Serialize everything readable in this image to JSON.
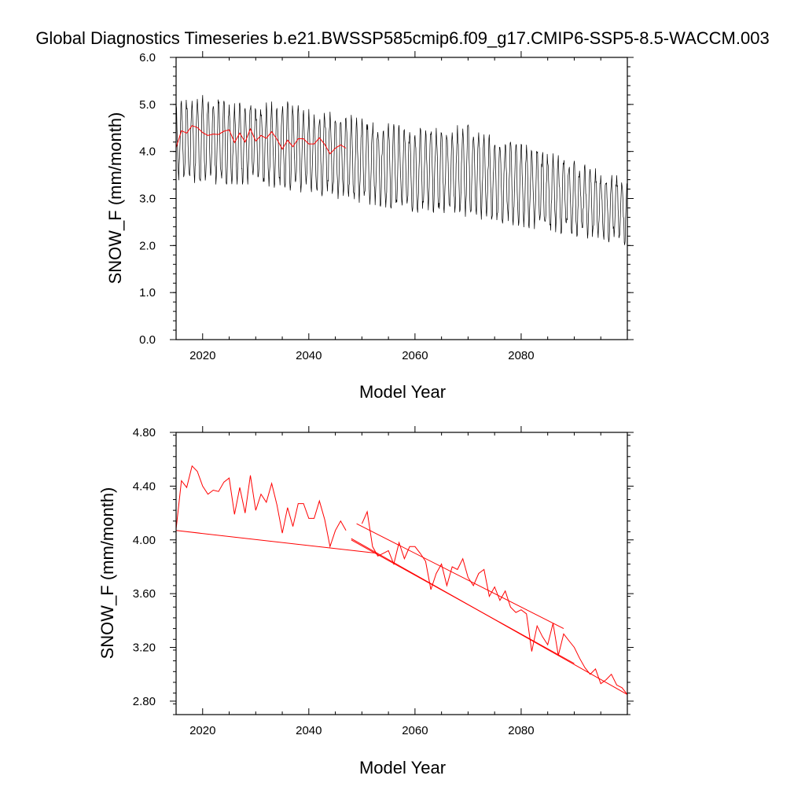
{
  "page": {
    "title": "Global Diagnostics Timeseries b.e21.BWSSP585cmip6.f09_g17.CMIP6-SSP5-8.5-WACCM.003"
  },
  "colors": {
    "monthly": "#000000",
    "annual": "#ff0000"
  },
  "chart_data": [
    {
      "type": "line",
      "title": "",
      "xlabel": "Model Year",
      "ylabel": "SNOW_F (mm/month)",
      "xlim": [
        2015,
        2100
      ],
      "ylim": [
        0.0,
        6.0
      ],
      "x_ticks": [
        2020,
        2040,
        2060,
        2080
      ],
      "x_tick_labels": [
        "2020",
        "2040",
        "2060",
        "2080"
      ],
      "y_ticks": [
        0.0,
        1.0,
        2.0,
        3.0,
        4.0,
        5.0,
        6.0
      ],
      "y_tick_labels": [
        "0.0",
        "1.0",
        "2.0",
        "3.0",
        "4.0",
        "5.0",
        "6.0"
      ],
      "series": [
        {
          "name": "monthly SNOW_F",
          "color": "#000000",
          "note": "monthly values oscillating roughly between min and max envelope",
          "x": [
            2015,
            2020,
            2025,
            2030,
            2035,
            2040,
            2045,
            2050,
            2055,
            2060,
            2065,
            2070,
            2075,
            2080,
            2085,
            2090,
            2095,
            2100
          ],
          "max": [
            5.0,
            5.1,
            5.0,
            4.9,
            5.0,
            4.8,
            4.8,
            4.6,
            4.5,
            4.4,
            4.4,
            4.5,
            4.2,
            4.1,
            3.9,
            3.7,
            3.5,
            3.4
          ],
          "min": [
            3.5,
            3.4,
            3.4,
            3.4,
            3.3,
            3.2,
            3.1,
            3.0,
            2.9,
            2.8,
            2.8,
            2.7,
            2.6,
            2.5,
            2.4,
            2.3,
            2.2,
            2.1
          ]
        },
        {
          "name": "annual mean SNOW_F",
          "color": "#ff0000",
          "x": [
            2015,
            2016,
            2017,
            2018,
            2019,
            2020,
            2021,
            2022,
            2023,
            2024,
            2025,
            2026,
            2027,
            2028,
            2029,
            2030,
            2031,
            2032,
            2033,
            2034,
            2035,
            2036,
            2037,
            2038,
            2039,
            2040,
            2041,
            2042,
            2043,
            2044,
            2045,
            2046,
            2047
          ],
          "values": [
            4.08,
            4.44,
            4.39,
            4.55,
            4.51,
            4.4,
            4.34,
            4.37,
            4.36,
            4.43,
            4.46,
            4.19,
            4.39,
            4.2,
            4.48,
            4.22,
            4.34,
            4.28,
            4.42,
            4.26,
            4.05,
            4.24,
            4.1,
            4.27,
            4.27,
            4.16,
            4.16,
            4.29,
            4.15,
            3.95,
            4.07,
            4.14,
            4.07
          ]
        }
      ]
    },
    {
      "type": "line",
      "title": "",
      "xlabel": "Model Year",
      "ylabel": "SNOW_F (mm/month)",
      "xlim": [
        2015,
        2100
      ],
      "ylim": [
        2.7,
        4.8
      ],
      "x_ticks": [
        2020,
        2040,
        2060,
        2080
      ],
      "x_tick_labels": [
        "2020",
        "2040",
        "2060",
        "2080"
      ],
      "y_ticks": [
        2.8,
        3.2,
        3.6,
        4.0,
        4.4,
        4.8
      ],
      "y_tick_labels": [
        "2.80",
        "3.20",
        "3.60",
        "4.00",
        "4.40",
        "4.80"
      ],
      "series": [
        {
          "name": "annual mean SNOW_F (first segment)",
          "color": "#ff0000",
          "x": [
            2015,
            2016,
            2017,
            2018,
            2019,
            2020,
            2021,
            2022,
            2023,
            2024,
            2025,
            2026,
            2027,
            2028,
            2029,
            2030,
            2031,
            2032,
            2033,
            2034,
            2035,
            2036,
            2037,
            2038,
            2039,
            2040,
            2041,
            2042,
            2043,
            2044,
            2045,
            2046,
            2047
          ],
          "values": [
            4.08,
            4.44,
            4.39,
            4.55,
            4.51,
            4.4,
            4.34,
            4.37,
            4.36,
            4.43,
            4.46,
            4.19,
            4.39,
            4.2,
            4.48,
            4.22,
            4.34,
            4.28,
            4.42,
            4.26,
            4.05,
            4.24,
            4.1,
            4.27,
            4.27,
            4.16,
            4.16,
            4.29,
            4.15,
            3.95,
            4.07,
            4.14,
            4.07
          ]
        },
        {
          "name": "connector",
          "color": "#ff0000",
          "x": [
            2015,
            2053
          ],
          "values": [
            4.07,
            3.9
          ]
        },
        {
          "name": "annual mean SNOW_F (later segments)",
          "color": "#ff0000",
          "x": [
            2050,
            2051,
            2052,
            2053,
            2054,
            2055,
            2056,
            2057,
            2058,
            2059,
            2060,
            2061,
            2062,
            2063,
            2064,
            2065,
            2066,
            2067,
            2068,
            2069,
            2070,
            2071,
            2072,
            2073,
            2074,
            2075,
            2076,
            2077,
            2078,
            2079,
            2080,
            2081,
            2082,
            2083,
            2084,
            2085,
            2086,
            2087,
            2088,
            2089,
            2090,
            2091,
            2092,
            2093,
            2094,
            2095,
            2096,
            2097,
            2098,
            2099,
            2100
          ],
          "values": [
            4.12,
            4.21,
            3.95,
            3.88,
            3.9,
            3.92,
            3.82,
            3.98,
            3.86,
            3.95,
            3.95,
            3.9,
            3.84,
            3.63,
            3.75,
            3.82,
            3.66,
            3.8,
            3.78,
            3.86,
            3.72,
            3.66,
            3.75,
            3.78,
            3.58,
            3.65,
            3.55,
            3.62,
            3.5,
            3.46,
            3.48,
            3.45,
            3.17,
            3.36,
            3.28,
            3.22,
            3.38,
            3.14,
            3.3,
            3.25,
            3.2,
            3.12,
            3.05,
            3.0,
            3.04,
            2.93,
            2.96,
            3.0,
            2.92,
            2.9,
            2.85
          ]
        },
        {
          "name": "trend line",
          "color": "#ff0000",
          "x": [
            2048,
            2100
          ],
          "values": [
            4.01,
            2.85
          ]
        },
        {
          "name": "parallel line A",
          "color": "#ff0000",
          "x": [
            2048,
            2090
          ],
          "values": [
            4.0,
            3.08
          ]
        },
        {
          "name": "parallel line B",
          "color": "#ff0000",
          "x": [
            2049,
            2088
          ],
          "values": [
            4.12,
            3.34
          ]
        }
      ]
    }
  ]
}
